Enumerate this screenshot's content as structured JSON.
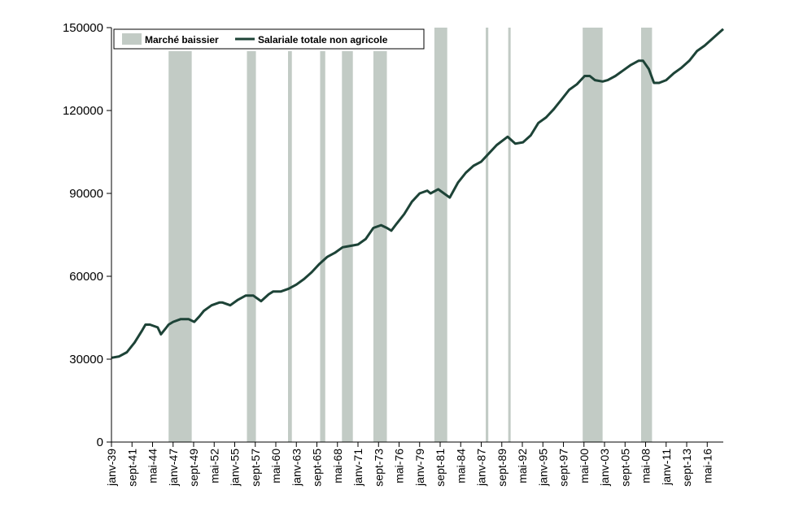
{
  "chart_data": {
    "type": "line",
    "title": "",
    "xlabel": "",
    "ylabel": "",
    "ylim": [
      0,
      150000
    ],
    "yticks": [
      "0",
      "30000",
      "60000",
      "90000",
      "120000",
      "150000"
    ],
    "xlim": [
      "1939-01",
      "2018-06"
    ],
    "xticks": [
      "janv-39",
      "sept-41",
      "mai-44",
      "janv-47",
      "sept-49",
      "mai-52",
      "janv-55",
      "sept-57",
      "mai-60",
      "janv-63",
      "sept-65",
      "mai-68",
      "janv-71",
      "sept-73",
      "mai-76",
      "janv-79",
      "sept-81",
      "mai-84",
      "janv-87",
      "sept-89",
      "mai-92",
      "janv-95",
      "sept-97",
      "mai-00",
      "janv-03",
      "sept-05",
      "mai-08",
      "janv-11",
      "sept-13",
      "mai-16"
    ],
    "grid": false,
    "legend_position": "top-left",
    "colors": {
      "line": "#1d4337",
      "band": "#c2cbc5"
    },
    "legend": {
      "band_label": "Marché baissier",
      "line_label": "Salariale totale non agricole"
    },
    "bands": [
      {
        "start": "1946-06",
        "end": "1949-06"
      },
      {
        "start": "1956-08",
        "end": "1957-10"
      },
      {
        "start": "1961-12",
        "end": "1962-06"
      },
      {
        "start": "1966-02",
        "end": "1966-10"
      },
      {
        "start": "1968-12",
        "end": "1970-05"
      },
      {
        "start": "1973-01",
        "end": "1974-10"
      },
      {
        "start": "1980-12",
        "end": "1982-08"
      },
      {
        "start": "1987-08",
        "end": "1987-12"
      },
      {
        "start": "1990-07",
        "end": "1990-10"
      },
      {
        "start": "2000-03",
        "end": "2002-10"
      },
      {
        "start": "2007-10",
        "end": "2009-03"
      }
    ],
    "series": [
      {
        "x": [
          "1939-01",
          "1940-01",
          "1941-01",
          "1942-01",
          "1943-01",
          "1943-06",
          "1944-01",
          "1945-01",
          "1945-06",
          "1946-01",
          "1946-06",
          "1947-01",
          "1948-01",
          "1949-01",
          "1949-10",
          "1950-06",
          "1951-01",
          "1952-01",
          "1953-01",
          "1953-06",
          "1954-06",
          "1955-06",
          "1956-06",
          "1957-06",
          "1958-06",
          "1959-06",
          "1960-01",
          "1961-01",
          "1962-01",
          "1963-01",
          "1964-01",
          "1965-01",
          "1966-01",
          "1967-01",
          "1968-01",
          "1969-01",
          "1970-01",
          "1971-01",
          "1972-01",
          "1973-01",
          "1974-01",
          "1974-10",
          "1975-05",
          "1976-01",
          "1977-01",
          "1978-01",
          "1979-01",
          "1980-01",
          "1980-06",
          "1981-06",
          "1982-12",
          "1984-01",
          "1985-01",
          "1986-01",
          "1987-01",
          "1988-01",
          "1989-01",
          "1990-06",
          "1991-06",
          "1992-06",
          "1993-06",
          "1994-06",
          "1995-06",
          "1996-06",
          "1997-06",
          "1998-06",
          "1999-06",
          "2000-06",
          "2001-02",
          "2001-10",
          "2002-10",
          "2003-06",
          "2004-06",
          "2005-06",
          "2006-06",
          "2007-06",
          "2008-01",
          "2008-10",
          "2009-06",
          "2010-02",
          "2011-01",
          "2012-01",
          "2013-01",
          "2014-01",
          "2015-01",
          "2016-01",
          "2017-01",
          "2018-01",
          "2018-06"
        ],
        "values": [
          30500,
          31000,
          32500,
          36000,
          40500,
          42500,
          42500,
          41500,
          39000,
          41000,
          42500,
          43500,
          44500,
          44500,
          43500,
          45500,
          47500,
          49500,
          50500,
          50500,
          49500,
          51500,
          53000,
          53000,
          51000,
          53500,
          54500,
          54500,
          55500,
          57000,
          59000,
          61500,
          64500,
          67000,
          68500,
          70500,
          71000,
          71500,
          73500,
          77500,
          78500,
          77500,
          76500,
          79000,
          82500,
          87000,
          90000,
          91000,
          90000,
          91500,
          88500,
          94000,
          97500,
          100000,
          101500,
          104500,
          107500,
          110500,
          108000,
          108500,
          111000,
          115500,
          117500,
          120500,
          124000,
          127500,
          129500,
          132500,
          132500,
          131000,
          130500,
          131000,
          132500,
          134500,
          136500,
          138000,
          138000,
          135000,
          130000,
          130000,
          131000,
          133500,
          135500,
          138000,
          141500,
          143500,
          146000,
          148500,
          149500
        ]
      }
    ]
  }
}
